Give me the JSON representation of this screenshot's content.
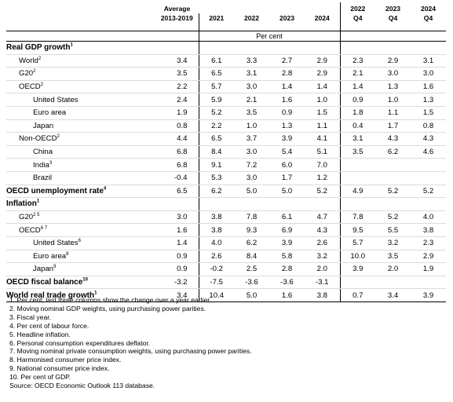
{
  "header": {
    "avg_line1": "Average",
    "avg_line2": "2013-2019",
    "years": [
      "2021",
      "2022",
      "2023",
      "2024"
    ],
    "q_years": [
      "2022",
      "2023",
      "2024"
    ],
    "q_label": "Q4",
    "unit": "Per cent"
  },
  "rows": [
    {
      "label": "Real GDP growth",
      "sup": "1",
      "style": "bold",
      "values": [
        "",
        "",
        "",
        "",
        "",
        "",
        "",
        ""
      ]
    },
    {
      "label": "World",
      "sup": "2",
      "style": "ind1",
      "values": [
        "3.4",
        "6.1",
        "3.3",
        "2.7",
        "2.9",
        "2.3",
        "2.9",
        "3.1"
      ]
    },
    {
      "label": "G20",
      "sup": "2",
      "style": "ind1",
      "values": [
        "3.5",
        "6.5",
        "3.1",
        "2.8",
        "2.9",
        "2.1",
        "3.0",
        "3.0"
      ]
    },
    {
      "label": "OECD",
      "sup": "2",
      "style": "ind1",
      "values": [
        "2.2",
        "5.7",
        "3.0",
        "1.4",
        "1.4",
        "1.4",
        "1.3",
        "1.6"
      ]
    },
    {
      "label": "United States",
      "sup": "",
      "style": "ind2",
      "values": [
        "2.4",
        "5.9",
        "2.1",
        "1.6",
        "1.0",
        "0.9",
        "1.0",
        "1.3"
      ]
    },
    {
      "label": "Euro area",
      "sup": "",
      "style": "ind2",
      "values": [
        "1.9",
        "5.2",
        "3.5",
        "0.9",
        "1.5",
        "1.8",
        "1.1",
        "1.5"
      ]
    },
    {
      "label": "Japan",
      "sup": "",
      "style": "ind2",
      "values": [
        "0.8",
        "2.2",
        "1.0",
        "1.3",
        "1.1",
        "0.4",
        "1.7",
        "0.8"
      ]
    },
    {
      "label": "Non-OECD",
      "sup": "2",
      "style": "ind1",
      "values": [
        "4.4",
        "6.5",
        "3.7",
        "3.9",
        "4.1",
        "3.1",
        "4.3",
        "4.3"
      ]
    },
    {
      "label": "China",
      "sup": "",
      "style": "ind2",
      "values": [
        "6.8",
        "8.4",
        "3.0",
        "5.4",
        "5.1",
        "3.5",
        "6.2",
        "4.6"
      ]
    },
    {
      "label": "India",
      "sup": "3",
      "style": "ind2",
      "values": [
        "6.8",
        "9.1",
        "7.2",
        "6.0",
        "7.0",
        "",
        "",
        ""
      ]
    },
    {
      "label": "Brazil",
      "sup": "",
      "style": "ind2",
      "values": [
        "-0.4",
        "5.3",
        "3.0",
        "1.7",
        "1.2",
        "",
        "",
        ""
      ]
    },
    {
      "label": "OECD unemployment rate",
      "sup": "4",
      "style": "bold",
      "values": [
        "6.5",
        "6.2",
        "5.0",
        "5.0",
        "5.2",
        "4.9",
        "5.2",
        "5.2"
      ]
    },
    {
      "label": "Inflation",
      "sup": "1",
      "style": "bold",
      "values": [
        "",
        "",
        "",
        "",
        "",
        "",
        "",
        ""
      ]
    },
    {
      "label": "G20",
      "sup": "2 5",
      "style": "ind1",
      "values": [
        "3.0",
        "3.8",
        "7.8",
        "6.1",
        "4.7",
        "7.8",
        "5.2",
        "4.0"
      ]
    },
    {
      "label": "OECD",
      "sup": "6 7",
      "style": "ind1",
      "values": [
        "1.6",
        "3.8",
        "9.3",
        "6.9",
        "4.3",
        "9.5",
        "5.5",
        "3.8"
      ]
    },
    {
      "label": "United States",
      "sup": "6",
      "style": "ind2",
      "values": [
        "1.4",
        "4.0",
        "6.2",
        "3.9",
        "2.6",
        "5.7",
        "3.2",
        "2.3"
      ]
    },
    {
      "label": "Euro area",
      "sup": "8",
      "style": "ind2",
      "values": [
        "0.9",
        "2.6",
        "8.4",
        "5.8",
        "3.2",
        "10.0",
        "3.5",
        "2.9"
      ]
    },
    {
      "label": "Japan",
      "sup": "9",
      "style": "ind2",
      "values": [
        "0.9",
        "-0.2",
        "2.5",
        "2.8",
        "2.0",
        "3.9",
        "2.0",
        "1.9"
      ]
    },
    {
      "label": "OECD fiscal balance",
      "sup": "10",
      "style": "bold",
      "values": [
        "-3.2",
        "-7.5",
        "-3.6",
        "-3.6",
        "-3.1",
        "",
        "",
        ""
      ]
    },
    {
      "label": "World real trade growth",
      "sup": "1",
      "style": "bold",
      "values": [
        "3.4",
        "10.4",
        "5.0",
        "1.6",
        "3.8",
        "0.7",
        "3.4",
        "3.9"
      ]
    }
  ],
  "notes": [
    "1. Per cent; last three columns show the change over a year earlier.",
    "2. Moving nominal GDP weights, using purchasing power parities.",
    "3. Fiscal year.",
    "4. Per cent of labour force.",
    "5. Headline inflation.",
    "6. Personal consumption expenditures deflator.",
    "7. Moving nominal private consumption weights, using purchasing power parities.",
    "8. Harmonised consumer price index.",
    "9. National consumer price index.",
    "10.  Per cent of GDP.",
    "Source: OECD Economic Outlook 113 database."
  ]
}
